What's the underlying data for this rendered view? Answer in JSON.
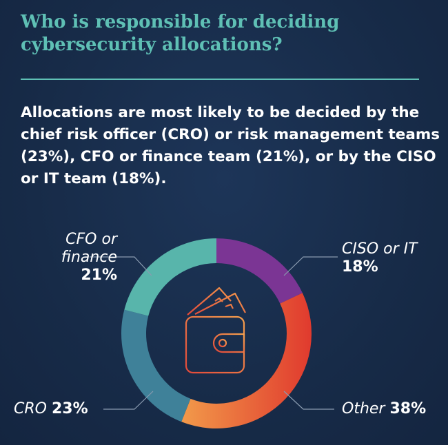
{
  "title": "Who is responsible for deciding cybersecurity allocations?",
  "summary": "Allocations are most likely to be decided by the chief risk officer (CRO) or risk management teams (23%), CFO or finance team (21%), or by the CISO or IT team (18%).",
  "icon": "wallet-with-cash-icon",
  "colors": {
    "title": "#5fc0b5",
    "background": "#172b48"
  },
  "chart_data": {
    "type": "pie",
    "donut": true,
    "categories": [
      "CISO or IT",
      "Other",
      "CRO",
      "CFO or finance"
    ],
    "values": [
      18,
      38,
      23,
      21
    ],
    "value_labels": [
      "18%",
      "38%",
      "23%",
      "21%"
    ],
    "colors": [
      "#7b3594",
      "#e8543a",
      "#3f8199",
      "#58b5ab"
    ],
    "unit": "%"
  }
}
